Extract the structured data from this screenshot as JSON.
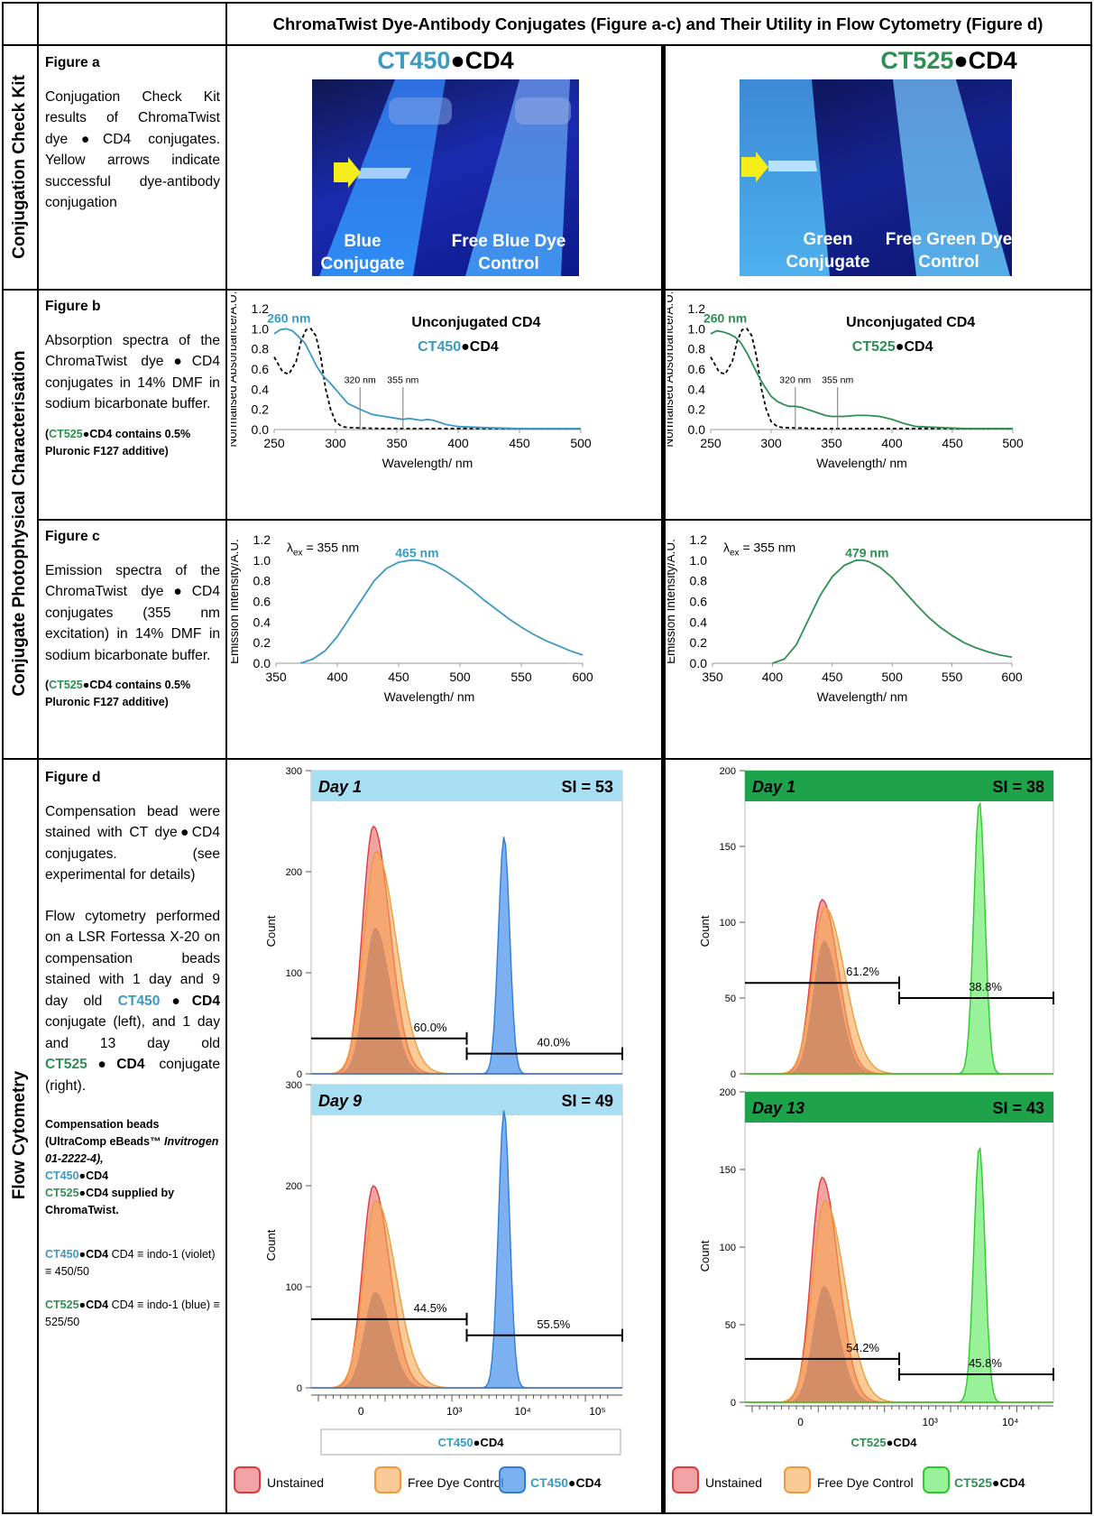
{
  "header": {
    "title": "ChromaTwist Dye-Antibody Conjugates (Figure a-c) and Their Utility in Flow Cytometry (Figure d)"
  },
  "sections": {
    "kit": "Conjugation Check Kit",
    "photophys": "Conjugate Photophysical Characterisation",
    "flow": "Flow Cytometry"
  },
  "bullet": "●",
  "dyes": {
    "ct450": "CT450",
    "ct525": "CT525",
    "cd4": "CD4",
    "ct450_color": "#3a9ac4",
    "ct525_color": "#2e8f52"
  },
  "figA": {
    "title": "Figure a",
    "text": "Conjugation Check Kit results of ChromaTwist dye●CD4 conjugates. Yellow arrows indicate successful dye-antibody conjugation",
    "left": {
      "label1": "Blue",
      "label1b": "Conjugate",
      "label2": "Free Blue Dye",
      "label2b": "Control"
    },
    "right": {
      "label1": "Green",
      "label1b": "Conjugate",
      "label2": "Free Green Dye",
      "label2b": "Control"
    }
  },
  "figB": {
    "title": "Figure b",
    "text": "Absorption spectra of the ChromaTwist dye●CD4 conjugates in 14% DMF in sodium bicarbonate buffer.",
    "note_suffix": "CD4 contains 0.5% Pluronic F127 additive)",
    "note_prefix": "(",
    "legend_unconj": "Unconjugated CD4",
    "peak": "260 nm",
    "mark1": "320 nm",
    "mark2": "355 nm",
    "xlabel": "Wavelength/ nm",
    "ylabel": "Normalised Absorbance/A.U."
  },
  "figC": {
    "title": "Figure c",
    "text": "Emission spectra of the ChromaTwist dye●CD4 conjugates (355 nm excitation) in 14% DMF in sodium bicarbonate buffer.",
    "lambda_sym": "λ",
    "lambda_sub": "ex",
    "lambda_val": " = 355 nm",
    "peak_left": "465 nm",
    "peak_right": "479 nm",
    "xlabel": "Wavelength/ nm",
    "ylabel": "Emission Intensity/A.U."
  },
  "figD": {
    "title": "Figure d",
    "text1": "Compensation bead were stained with CT dye●CD4 conjugates. (see experimental for details)",
    "text2a": "Flow cytometry performed on a LSR Fortessa X-20 on compensation beads stained with 1 day and 9 day old ",
    "text2b": " conjugate (left), and 1 day and 13 day old ",
    "text2c": " conjugate (right).",
    "note1a": "Compensation beads (UltraComp eBeads™ ",
    "note1b": "Invitrogen 01-2222-4),",
    "note1c": "supplied by ChromaTwist.",
    "note2": "CD4 ≡ indo-1 (violet) ≡ 450/50",
    "note3": "CD4 ≡ indo-1 (blue) ≡ 525/50",
    "ylabel": "Count",
    "legend_unstained": "Unstained",
    "legend_free": "Free Dye Control"
  },
  "chart_data": [
    {
      "type": "line",
      "id": "abs_ct450",
      "xlim": [
        250,
        500
      ],
      "ylim": [
        0,
        1.2
      ],
      "xticks": [
        250,
        300,
        350,
        400,
        450,
        500
      ],
      "yticks": [
        0.0,
        0.2,
        0.4,
        0.6,
        0.8,
        1.0,
        1.2
      ],
      "series": [
        {
          "name": "Unconjugated CD4",
          "style": "dashed",
          "color": "#000000",
          "x": [
            250,
            257,
            262,
            268,
            272,
            276,
            280,
            284,
            288,
            292,
            296,
            300,
            305,
            310,
            320,
            340,
            380,
            500
          ],
          "y": [
            0.72,
            0.57,
            0.55,
            0.68,
            0.88,
            0.99,
            1.0,
            0.93,
            0.72,
            0.4,
            0.2,
            0.08,
            0.03,
            0.02,
            0.015,
            0.01,
            0.01,
            0.01
          ]
        },
        {
          "name": "CT450●CD4",
          "color": "#3a9ac4",
          "x": [
            250,
            255,
            260,
            265,
            270,
            275,
            280,
            285,
            290,
            295,
            300,
            305,
            310,
            320,
            330,
            340,
            350,
            355,
            360,
            365,
            370,
            375,
            380,
            390,
            400,
            420,
            450,
            500
          ],
          "y": [
            0.95,
            0.99,
            1.0,
            0.98,
            0.92,
            0.86,
            0.74,
            0.62,
            0.53,
            0.47,
            0.4,
            0.33,
            0.26,
            0.2,
            0.15,
            0.13,
            0.11,
            0.1,
            0.11,
            0.1,
            0.09,
            0.1,
            0.09,
            0.05,
            0.03,
            0.02,
            0.01,
            0.01
          ]
        }
      ]
    },
    {
      "type": "line",
      "id": "abs_ct525",
      "xlim": [
        250,
        500
      ],
      "ylim": [
        0,
        1.2
      ],
      "xticks": [
        250,
        300,
        350,
        400,
        450,
        500
      ],
      "yticks": [
        0.0,
        0.2,
        0.4,
        0.6,
        0.8,
        1.0,
        1.2
      ],
      "series": [
        {
          "name": "Unconjugated CD4",
          "style": "dashed",
          "color": "#000000",
          "x": [
            250,
            257,
            262,
            268,
            272,
            276,
            280,
            284,
            288,
            292,
            296,
            300,
            305,
            310,
            320,
            340,
            380,
            500
          ],
          "y": [
            0.72,
            0.57,
            0.55,
            0.68,
            0.88,
            0.99,
            1.0,
            0.93,
            0.72,
            0.4,
            0.2,
            0.08,
            0.03,
            0.02,
            0.015,
            0.01,
            0.01,
            0.01
          ]
        },
        {
          "name": "CT525●CD4",
          "color": "#2e8f52",
          "x": [
            250,
            255,
            260,
            265,
            270,
            275,
            280,
            285,
            290,
            295,
            300,
            305,
            310,
            315,
            320,
            325,
            330,
            335,
            340,
            345,
            350,
            360,
            370,
            380,
            390,
            400,
            410,
            420,
            440,
            460,
            480,
            500
          ],
          "y": [
            0.95,
            0.98,
            0.97,
            0.95,
            0.92,
            0.86,
            0.76,
            0.64,
            0.52,
            0.42,
            0.33,
            0.28,
            0.25,
            0.23,
            0.23,
            0.22,
            0.2,
            0.18,
            0.16,
            0.14,
            0.13,
            0.13,
            0.14,
            0.14,
            0.13,
            0.1,
            0.06,
            0.03,
            0.02,
            0.01,
            0.01,
            0.01
          ]
        }
      ]
    },
    {
      "type": "line",
      "id": "em_ct450",
      "xlim": [
        350,
        600
      ],
      "ylim": [
        0,
        1.2
      ],
      "xticks": [
        350,
        400,
        450,
        500,
        550,
        600
      ],
      "yticks": [
        0.0,
        0.2,
        0.4,
        0.6,
        0.8,
        1.0,
        1.2
      ],
      "series": [
        {
          "name": "CT450●CD4",
          "color": "#3a9ac4",
          "x": [
            370,
            380,
            390,
            400,
            410,
            420,
            430,
            440,
            450,
            460,
            465,
            470,
            480,
            490,
            500,
            510,
            520,
            530,
            540,
            550,
            560,
            570,
            580,
            590,
            600
          ],
          "y": [
            0.0,
            0.04,
            0.12,
            0.26,
            0.44,
            0.62,
            0.8,
            0.92,
            0.98,
            1.0,
            1.0,
            0.99,
            0.95,
            0.88,
            0.8,
            0.71,
            0.61,
            0.52,
            0.43,
            0.35,
            0.28,
            0.22,
            0.17,
            0.12,
            0.08
          ]
        }
      ]
    },
    {
      "type": "line",
      "id": "em_ct525",
      "xlim": [
        350,
        600
      ],
      "ylim": [
        0,
        1.2
      ],
      "xticks": [
        350,
        400,
        450,
        500,
        550,
        600
      ],
      "yticks": [
        0.0,
        0.2,
        0.4,
        0.6,
        0.8,
        1.0,
        1.2
      ],
      "series": [
        {
          "name": "CT525●CD4",
          "color": "#2e8f52",
          "x": [
            400,
            410,
            420,
            430,
            440,
            450,
            460,
            470,
            475,
            480,
            490,
            500,
            510,
            520,
            530,
            540,
            550,
            560,
            570,
            580,
            590,
            600
          ],
          "y": [
            0.0,
            0.04,
            0.18,
            0.42,
            0.66,
            0.84,
            0.95,
            1.0,
            1.0,
            0.99,
            0.93,
            0.83,
            0.7,
            0.57,
            0.45,
            0.35,
            0.27,
            0.2,
            0.15,
            0.11,
            0.08,
            0.06
          ]
        }
      ]
    },
    {
      "type": "area",
      "id": "flow_ct450_day1",
      "label": "Day 1",
      "si": "SI = 53",
      "ylim": [
        0,
        300
      ],
      "yticks": [
        0,
        100,
        200,
        300
      ],
      "xticks": [
        "0",
        "10³",
        "10⁴",
        "10⁵"
      ],
      "gates": [
        {
          "label": "60.0%",
          "y": 35
        },
        {
          "label": "40.0%",
          "y": 20
        }
      ],
      "peaks": [
        {
          "name": "Unstained",
          "peak": 245
        },
        {
          "name": "Free Dye Control",
          "peak": 220
        },
        {
          "name": "overlap",
          "peak": 145
        },
        {
          "name": "CT450●CD4",
          "peak": 235
        }
      ]
    },
    {
      "type": "area",
      "id": "flow_ct450_day9",
      "label": "Day 9",
      "si": "SI = 49",
      "ylim": [
        0,
        300
      ],
      "yticks": [
        0,
        100,
        200,
        300
      ],
      "xticks": [
        "0",
        "10³",
        "10⁴",
        "10⁵"
      ],
      "gates": [
        {
          "label": "44.5%",
          "y": 68
        },
        {
          "label": "55.5%",
          "y": 52
        }
      ],
      "peaks": [
        {
          "name": "Unstained",
          "peak": 200
        },
        {
          "name": "Free Dye Control",
          "peak": 185
        },
        {
          "name": "overlap",
          "peak": 95
        },
        {
          "name": "CT450●CD4",
          "peak": 275
        }
      ]
    },
    {
      "type": "area",
      "id": "flow_ct525_day1",
      "label": "Day 1",
      "si": "SI = 38",
      "ylim": [
        0,
        200
      ],
      "yticks": [
        0,
        50,
        100,
        150,
        200
      ],
      "xticks": [
        "0",
        "10³",
        "10⁴"
      ],
      "gates": [
        {
          "label": "61.2%",
          "y": 60
        },
        {
          "label": "38.8%",
          "y": 50
        }
      ],
      "peaks": [
        {
          "name": "Unstained",
          "peak": 115
        },
        {
          "name": "Free Dye Control",
          "peak": 110
        },
        {
          "name": "overlap",
          "peak": 88
        },
        {
          "name": "CT525●CD4",
          "peak": 180
        }
      ]
    },
    {
      "type": "area",
      "id": "flow_ct525_day13",
      "label": "Day 13",
      "si": "SI = 43",
      "ylim": [
        0,
        200
      ],
      "yticks": [
        0,
        50,
        100,
        150,
        200
      ],
      "xticks": [
        "0",
        "10³",
        "10⁴"
      ],
      "gates": [
        {
          "label": "54.2%",
          "y": 28
        },
        {
          "label": "45.8%",
          "y": 18
        }
      ],
      "peaks": [
        {
          "name": "Unstained",
          "peak": 145
        },
        {
          "name": "Free Dye Control",
          "peak": 130
        },
        {
          "name": "overlap",
          "peak": 75
        },
        {
          "name": "CT525●CD4",
          "peak": 165
        }
      ]
    }
  ]
}
